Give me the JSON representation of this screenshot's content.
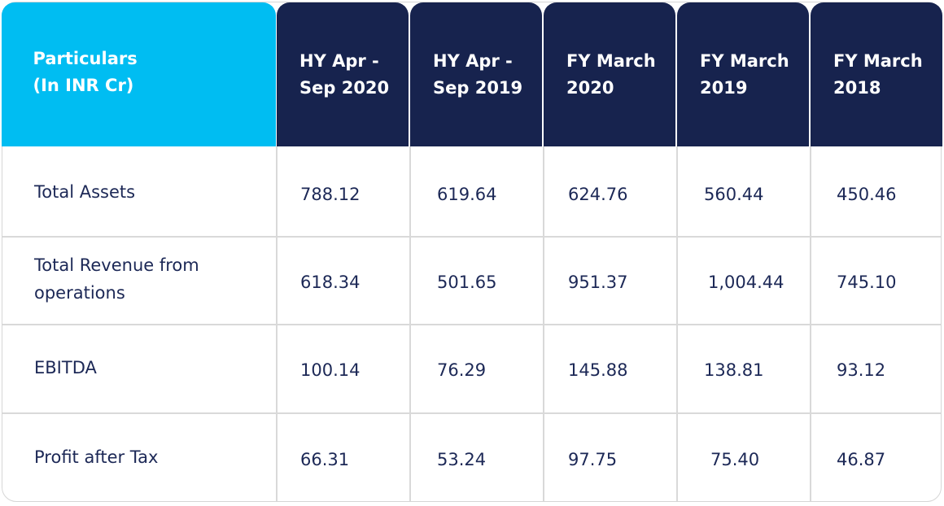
{
  "table": {
    "header": {
      "particulars": "Particulars\n(In INR Cr)",
      "periods": [
        "HY Apr -\nSep 2020",
        "HY Apr -\nSep 2019",
        "FY March\n2020",
        "FY March\n2019",
        "FY March\n2018"
      ]
    },
    "rows": [
      {
        "label": "Total Assets",
        "values": [
          "788.12",
          "619.64",
          "624.76",
          "560.44",
          "450.46"
        ]
      },
      {
        "label": "Total Revenue from operations",
        "values": [
          "618.34",
          "501.65",
          "951.37",
          "1,004.44",
          "745.10"
        ]
      },
      {
        "label": "EBITDA",
        "values": [
          "100.14",
          "76.29",
          "145.88",
          "138.81",
          "93.12"
        ]
      },
      {
        "label": "Profit after Tax",
        "values": [
          "66.31",
          "53.24",
          "97.75",
          "75.40",
          "46.87"
        ]
      }
    ],
    "colors": {
      "first_header": "#00bdf2",
      "period_header": "#17234e",
      "text": "#1c2856"
    }
  }
}
